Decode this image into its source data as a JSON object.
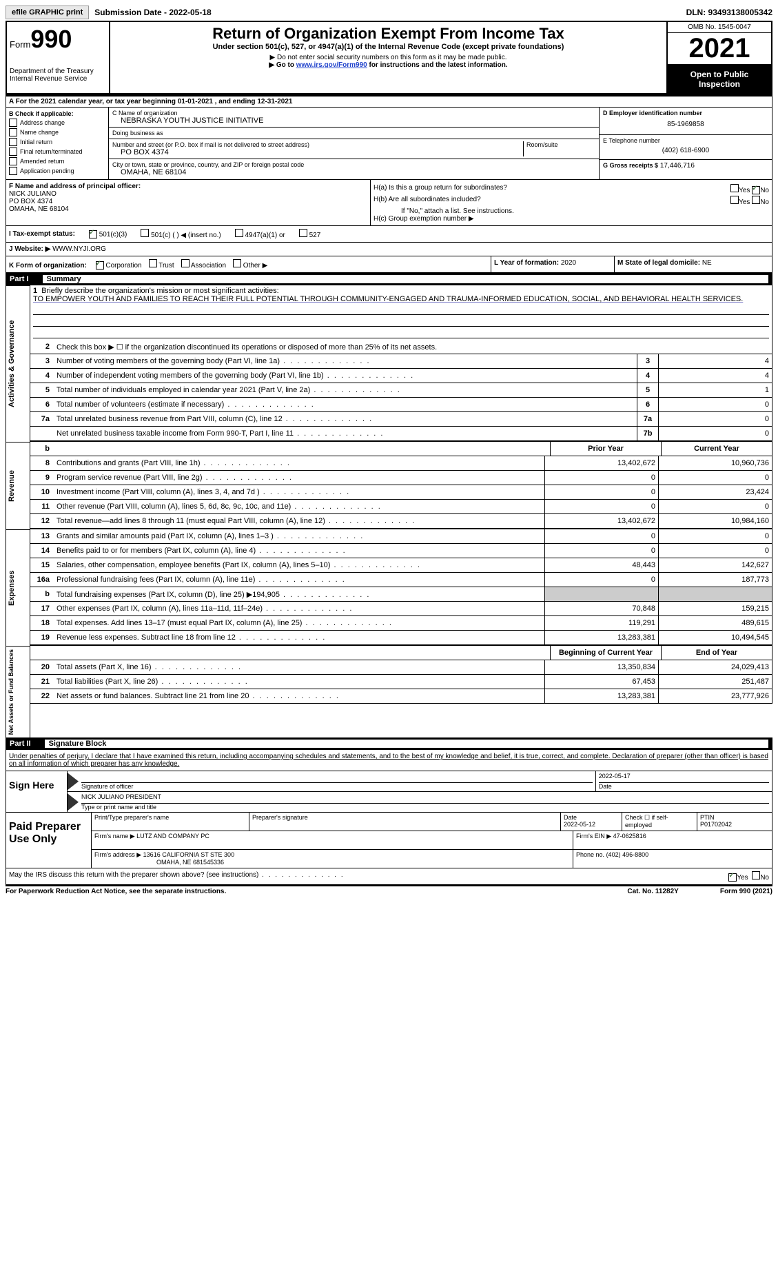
{
  "topbar": {
    "print": "efile GRAPHIC print",
    "submission": "Submission Date - 2022-05-18",
    "dln": "DLN: 93493138005342"
  },
  "header": {
    "form_label": "Form",
    "form_num": "990",
    "dept": "Department of the Treasury\nInternal Revenue Service",
    "title": "Return of Organization Exempt From Income Tax",
    "subtitle": "Under section 501(c), 527, or 4947(a)(1) of the Internal Revenue Code (except private foundations)",
    "note1": "▶ Do not enter social security numbers on this form as it may be made public.",
    "note2_pre": "▶ Go to ",
    "note2_link": "www.irs.gov/Form990",
    "note2_post": " for instructions and the latest information.",
    "omb": "OMB No. 1545-0047",
    "year": "2021",
    "inspection": "Open to Public Inspection"
  },
  "section_a": "A For the 2021 calendar year, or tax year beginning 01-01-2021   , and ending 12-31-2021",
  "col_b": {
    "title": "B Check if applicable:",
    "opts": [
      "Address change",
      "Name change",
      "Initial return",
      "Final return/terminated",
      "Amended return",
      "Application pending"
    ]
  },
  "col_c": {
    "name_label": "C Name of organization",
    "name": "NEBRASKA YOUTH JUSTICE INITIATIVE",
    "dba_label": "Doing business as",
    "addr_label": "Number and street (or P.O. box if mail is not delivered to street address)",
    "room_label": "Room/suite",
    "addr": "PO BOX 4374",
    "city_label": "City or town, state or province, country, and ZIP or foreign postal code",
    "city": "OMAHA, NE  68104"
  },
  "col_d": {
    "ein_label": "D Employer identification number",
    "ein": "85-1969858",
    "phone_label": "E Telephone number",
    "phone": "(402) 618-6900",
    "gross_label": "G Gross receipts $",
    "gross": "17,446,716"
  },
  "row_f": {
    "label": "F  Name and address of principal officer:",
    "name": "NICK JULIANO",
    "addr1": "PO BOX 4374",
    "addr2": "OMAHA, NE  68104"
  },
  "row_h": {
    "ha": "H(a)  Is this a group return for subordinates?",
    "hb": "H(b)  Are all subordinates included?",
    "hb_note": "If \"No,\" attach a list. See instructions.",
    "hc": "H(c)  Group exemption number ▶",
    "yes": "Yes",
    "no": "No"
  },
  "row_i": {
    "label": "I   Tax-exempt status:",
    "opt1": "501(c)(3)",
    "opt2": "501(c) (  ) ◀ (insert no.)",
    "opt3": "4947(a)(1) or",
    "opt4": "527"
  },
  "row_j": {
    "label": "J   Website: ▶",
    "val": "WWW.NYJI.ORG"
  },
  "row_k": {
    "label": "K Form of organization:",
    "opts": [
      "Corporation",
      "Trust",
      "Association",
      "Other ▶"
    ]
  },
  "row_l": {
    "label": "L Year of formation:",
    "val": "2020"
  },
  "row_m": {
    "label": "M State of legal domicile:",
    "val": "NE"
  },
  "part1": {
    "num": "Part I",
    "title": "Summary"
  },
  "mission": {
    "q": "Briefly describe the organization's mission or most significant activities:",
    "text": "TO EMPOWER YOUTH AND FAMILIES TO REACH THEIR FULL POTENTIAL THROUGH COMMUNITY-ENGAGED AND TRAUMA-INFORMED EDUCATION, SOCIAL, AND BEHAVIORAL HEALTH SERVICES."
  },
  "lines": {
    "l2": "Check this box ▶ ☐  if the organization discontinued its operations or disposed of more than 25% of its net assets.",
    "l3": {
      "text": "Number of voting members of the governing body (Part VI, line 1a)",
      "box": "3",
      "val": "4"
    },
    "l4": {
      "text": "Number of independent voting members of the governing body (Part VI, line 1b)",
      "box": "4",
      "val": "4"
    },
    "l5": {
      "text": "Total number of individuals employed in calendar year 2021 (Part V, line 2a)",
      "box": "5",
      "val": "1"
    },
    "l6": {
      "text": "Total number of volunteers (estimate if necessary)",
      "box": "6",
      "val": "0"
    },
    "l7a": {
      "text": "Total unrelated business revenue from Part VIII, column (C), line 12",
      "box": "7a",
      "val": "0"
    },
    "l7b": {
      "text": "Net unrelated business taxable income from Form 990-T, Part I, line 11",
      "box": "7b",
      "val": "0"
    }
  },
  "col_headers": {
    "prior": "Prior Year",
    "current": "Current Year"
  },
  "revenue": [
    {
      "num": "8",
      "text": "Contributions and grants (Part VIII, line 1h)",
      "prior": "13,402,672",
      "curr": "10,960,736"
    },
    {
      "num": "9",
      "text": "Program service revenue (Part VIII, line 2g)",
      "prior": "0",
      "curr": "0"
    },
    {
      "num": "10",
      "text": "Investment income (Part VIII, column (A), lines 3, 4, and 7d )",
      "prior": "0",
      "curr": "23,424"
    },
    {
      "num": "11",
      "text": "Other revenue (Part VIII, column (A), lines 5, 6d, 8c, 9c, 10c, and 11e)",
      "prior": "0",
      "curr": "0"
    },
    {
      "num": "12",
      "text": "Total revenue—add lines 8 through 11 (must equal Part VIII, column (A), line 12)",
      "prior": "13,402,672",
      "curr": "10,984,160"
    }
  ],
  "expenses": [
    {
      "num": "13",
      "text": "Grants and similar amounts paid (Part IX, column (A), lines 1–3 )",
      "prior": "0",
      "curr": "0"
    },
    {
      "num": "14",
      "text": "Benefits paid to or for members (Part IX, column (A), line 4)",
      "prior": "0",
      "curr": "0"
    },
    {
      "num": "15",
      "text": "Salaries, other compensation, employee benefits (Part IX, column (A), lines 5–10)",
      "prior": "48,443",
      "curr": "142,627"
    },
    {
      "num": "16a",
      "text": "Professional fundraising fees (Part IX, column (A), line 11e)",
      "prior": "0",
      "curr": "187,773"
    },
    {
      "num": "b",
      "text": "Total fundraising expenses (Part IX, column (D), line 25) ▶194,905",
      "prior": "",
      "curr": "",
      "shaded": true
    },
    {
      "num": "17",
      "text": "Other expenses (Part IX, column (A), lines 11a–11d, 11f–24e)",
      "prior": "70,848",
      "curr": "159,215"
    },
    {
      "num": "18",
      "text": "Total expenses. Add lines 13–17 (must equal Part IX, column (A), line 25)",
      "prior": "119,291",
      "curr": "489,615"
    },
    {
      "num": "19",
      "text": "Revenue less expenses. Subtract line 18 from line 12",
      "prior": "13,283,381",
      "curr": "10,494,545"
    }
  ],
  "net_headers": {
    "begin": "Beginning of Current Year",
    "end": "End of Year"
  },
  "netassets": [
    {
      "num": "20",
      "text": "Total assets (Part X, line 16)",
      "prior": "13,350,834",
      "curr": "24,029,413"
    },
    {
      "num": "21",
      "text": "Total liabilities (Part X, line 26)",
      "prior": "67,453",
      "curr": "251,487"
    },
    {
      "num": "22",
      "text": "Net assets or fund balances. Subtract line 21 from line 20",
      "prior": "13,283,381",
      "curr": "23,777,926"
    }
  ],
  "side_labels": {
    "gov": "Activities & Governance",
    "rev": "Revenue",
    "exp": "Expenses",
    "net": "Net Assets or Fund Balances"
  },
  "part2": {
    "num": "Part II",
    "title": "Signature Block"
  },
  "declare": "Under penalties of perjury, I declare that I have examined this return, including accompanying schedules and statements, and to the best of my knowledge and belief, it is true, correct, and complete. Declaration of preparer (other than officer) is based on all information of which preparer has any knowledge.",
  "sign": {
    "label": "Sign Here",
    "sig_officer": "Signature of officer",
    "date": "2022-05-17",
    "date_label": "Date",
    "name": "NICK JULIANO  PRESIDENT",
    "name_label": "Type or print name and title"
  },
  "prep": {
    "label": "Paid Preparer Use Only",
    "print_label": "Print/Type preparer's name",
    "sig_label": "Preparer's signature",
    "date_label": "Date",
    "date": "2022-05-12",
    "check_label": "Check ☐ if self-employed",
    "ptin_label": "PTIN",
    "ptin": "P01702042",
    "firm_name_label": "Firm's name    ▶",
    "firm_name": "LUTZ AND COMPANY PC",
    "firm_ein_label": "Firm's EIN ▶",
    "firm_ein": "47-0625816",
    "firm_addr_label": "Firm's address ▶",
    "firm_addr": "13616 CALIFORNIA ST STE 300",
    "firm_addr2": "OMAHA, NE  681545336",
    "phone_label": "Phone no.",
    "phone": "(402) 496-8800"
  },
  "footer": {
    "irs_q": "May the IRS discuss this return with the preparer shown above? (see instructions)",
    "yes": "Yes",
    "no": "No",
    "paperwork": "For Paperwork Reduction Act Notice, see the separate instructions.",
    "cat": "Cat. No. 11282Y",
    "form": "Form 990 (2021)"
  }
}
